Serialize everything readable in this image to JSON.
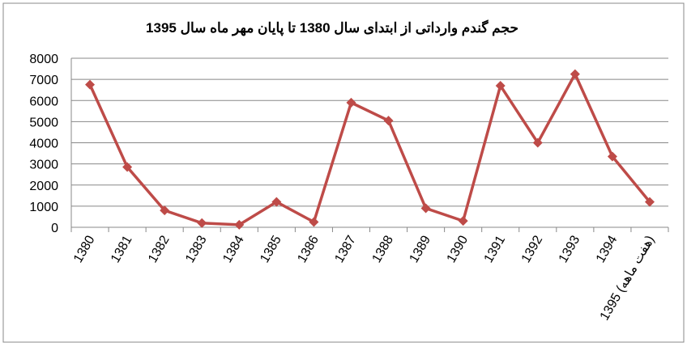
{
  "chart_data": {
    "type": "line",
    "title": "حجم گندم وارداتی از ابتدای سال 1380 تا پایان مهر ماه سال 1395",
    "categories": [
      "1380",
      "1381",
      "1382",
      "1383",
      "1384",
      "1385",
      "1386",
      "1387",
      "1388",
      "1389",
      "1390",
      "1391",
      "1392",
      "1393",
      "1394",
      "1395 (هفت ماهه)"
    ],
    "series": [
      {
        "name": "حجم گندم وارداتی",
        "color": "#be4b48",
        "values": [
          6750,
          2850,
          800,
          200,
          120,
          1200,
          250,
          5900,
          5050,
          900,
          300,
          6700,
          4000,
          7250,
          3350,
          1200
        ]
      }
    ],
    "ylim": [
      0,
      8000
    ],
    "yticks": [
      0,
      1000,
      2000,
      3000,
      4000,
      5000,
      6000,
      7000,
      8000
    ],
    "grid": true
  }
}
